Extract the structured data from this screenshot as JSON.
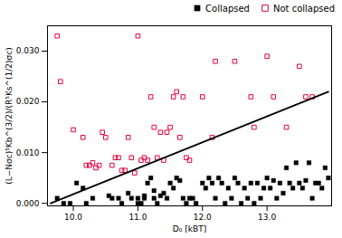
{
  "chart_data": {
    "type": "scatter",
    "xlabel": "D₀ [kBT]",
    "ylabel": "(L−Nσc)⁵Kb^(3/2)/(R⁵Ks^(1/2)σc)",
    "xlim": [
      9.6,
      14.0
    ],
    "ylim": [
      -0.0005,
      0.035
    ],
    "xticks": [
      10,
      11,
      12,
      13
    ],
    "yticks": [
      0,
      0.01,
      0.02,
      0.03
    ],
    "legend": "upper right",
    "series": [
      {
        "name": "Collapsed",
        "type": "scatter",
        "marker": "square",
        "color": "black",
        "x": [
          9.75,
          9.85,
          9.95,
          10.05,
          10.15,
          10.2,
          10.3,
          10.55,
          10.6,
          10.7,
          10.75,
          10.85,
          10.9,
          11.0,
          11.0,
          11.05,
          11.1,
          11.1,
          11.15,
          11.2,
          11.25,
          11.25,
          11.3,
          11.35,
          11.4,
          11.45,
          11.5,
          11.55,
          11.6,
          11.65,
          11.7,
          11.75,
          11.8,
          11.85,
          11.9,
          12.0,
          12.05,
          12.1,
          12.15,
          12.2,
          12.25,
          12.3,
          12.35,
          12.4,
          12.45,
          12.5,
          12.55,
          12.6,
          12.65,
          12.7,
          12.75,
          12.8,
          12.85,
          12.9,
          12.95,
          13.0,
          13.05,
          13.1,
          13.15,
          13.2,
          13.25,
          13.3,
          13.35,
          13.4,
          13.45,
          13.5,
          13.55,
          13.6,
          13.65,
          13.7,
          13.75,
          13.8,
          13.85,
          13.9,
          13.95
        ],
        "values": [
          0.001,
          0.0,
          0.0,
          0.004,
          0.003,
          0.0,
          0.001,
          0.0015,
          0.001,
          0.001,
          0.0,
          0.002,
          0.001,
          0.0,
          0.001,
          0.0,
          0.001,
          0.0015,
          0.004,
          0.005,
          0.0025,
          0.001,
          0.0,
          0.0015,
          0.002,
          0.001,
          0.004,
          0.003,
          0.005,
          0.0045,
          0.001,
          0.0,
          0.001,
          0.001,
          0.0,
          0.004,
          0.003,
          0.005,
          0.004,
          0.001,
          0.005,
          0.004,
          0.0,
          0.003,
          0.001,
          0.005,
          0.004,
          0.0,
          0.003,
          0.001,
          0.004,
          0.0,
          0.004,
          0.001,
          0.003,
          0.005,
          0.003,
          0.0045,
          0.001,
          0.004,
          0.002,
          0.007,
          0.004,
          0.003,
          0.008,
          0.004,
          0.003,
          0.0045,
          0.008,
          0.001,
          0.004,
          0.004,
          0.003,
          0.007,
          0.005
        ]
      },
      {
        "name": "Not collapsed",
        "type": "scatter",
        "marker": "square-open",
        "color": "#e8003c",
        "x": [
          9.75,
          9.8,
          10.0,
          10.15,
          10.2,
          10.25,
          10.3,
          10.35,
          10.4,
          10.45,
          10.5,
          10.6,
          10.65,
          10.7,
          10.75,
          10.8,
          10.85,
          10.9,
          10.95,
          11.0,
          11.05,
          11.1,
          11.15,
          11.2,
          11.25,
          11.3,
          11.35,
          11.4,
          11.45,
          11.5,
          11.55,
          11.6,
          11.65,
          11.7,
          11.75,
          11.8,
          12.0,
          12.15,
          12.2,
          12.5,
          12.75,
          12.8,
          13.0,
          13.1,
          13.3,
          13.5,
          13.6,
          13.7
        ],
        "values": [
          0.033,
          0.024,
          0.0145,
          0.013,
          0.0075,
          0.0075,
          0.008,
          0.007,
          0.0075,
          0.014,
          0.013,
          0.0075,
          0.009,
          0.009,
          0.0065,
          0.0065,
          0.013,
          0.009,
          0.006,
          0.033,
          0.0085,
          0.009,
          0.0085,
          0.021,
          0.015,
          0.009,
          0.014,
          0.0085,
          0.014,
          0.015,
          0.021,
          0.022,
          0.013,
          0.021,
          0.009,
          0.0085,
          0.021,
          0.013,
          0.028,
          0.028,
          0.021,
          0.015,
          0.029,
          0.021,
          0.015,
          0.027,
          0.021,
          0.021
        ]
      },
      {
        "type": "line",
        "color": "black",
        "x": [
          9.65,
          13.95
        ],
        "values": [
          0.0,
          0.022
        ]
      }
    ]
  }
}
